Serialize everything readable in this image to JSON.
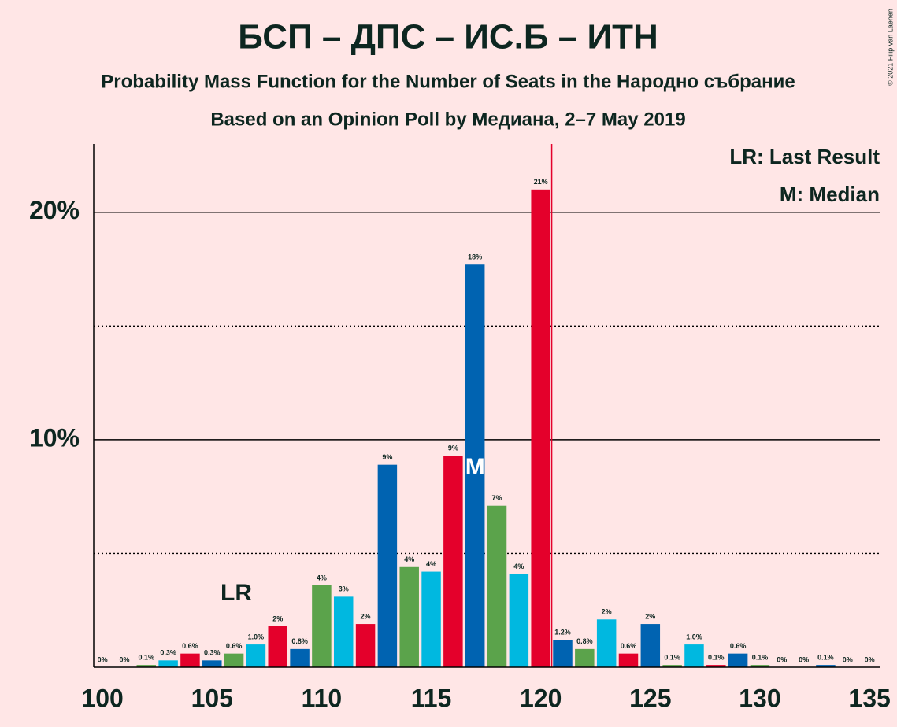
{
  "chart_data": {
    "type": "bar",
    "title": "БСП – ДПС – ИС.Б – ИТН",
    "subtitle": "Probability Mass Function for the Number of Seats in the Народно събрание",
    "subtitle2": "Based on an Opinion Poll by Медиана, 2–7 May 2019",
    "copyright": "© 2021 Filip van Laenen",
    "legend": [
      "LR: Last Result",
      "M: Median"
    ],
    "last_result_label": "LR",
    "median_label": "M",
    "last_result": 120,
    "median": 117,
    "x": [
      100,
      101,
      102,
      103,
      104,
      105,
      106,
      107,
      108,
      109,
      110,
      111,
      112,
      113,
      114,
      115,
      116,
      117,
      118,
      119,
      120,
      121,
      122,
      123,
      124,
      125,
      126,
      127,
      128,
      129,
      130,
      131,
      132,
      133,
      134,
      135
    ],
    "values": [
      0,
      0,
      0.1,
      0.3,
      0.6,
      0.3,
      0.6,
      1.0,
      1.8,
      0.8,
      3.6,
      3.1,
      1.9,
      8.9,
      4.4,
      4.2,
      9.3,
      17.7,
      7.1,
      4.1,
      21.0,
      1.2,
      0.8,
      2.1,
      0.6,
      1.9,
      0.1,
      1.0,
      0.1,
      0.6,
      0.1,
      0,
      0,
      0.1,
      0,
      0
    ],
    "value_labels": [
      "0%",
      "0%",
      "0.1%",
      "0.3%",
      "0.6%",
      "0.3%",
      "0.6%",
      "1.0%",
      "2%",
      "0.8%",
      "4%",
      "3%",
      "2%",
      "9%",
      "4%",
      "4%",
      "9%",
      "18%",
      "7%",
      "4%",
      "21%",
      "1.2%",
      "0.8%",
      "2%",
      "0.6%",
      "2%",
      "0.1%",
      "1.0%",
      "0.1%",
      "0.6%",
      "0.1%",
      "0%",
      "0%",
      "0.1%",
      "0%",
      "0%"
    ],
    "colors": [
      "#e4002b",
      "#0063b1",
      "#5ba34b",
      "#00b8e0"
    ],
    "last_result_color": "#e4002b",
    "xlim": [
      99.6,
      135.5
    ],
    "xticks": [
      100,
      105,
      110,
      115,
      120,
      125,
      130,
      135
    ],
    "ylim": [
      0,
      23
    ],
    "yticks": [
      {
        "value": 10,
        "label": "10%"
      },
      {
        "value": 20,
        "label": "20%"
      }
    ],
    "minor_yticks": [
      5,
      15
    ]
  }
}
